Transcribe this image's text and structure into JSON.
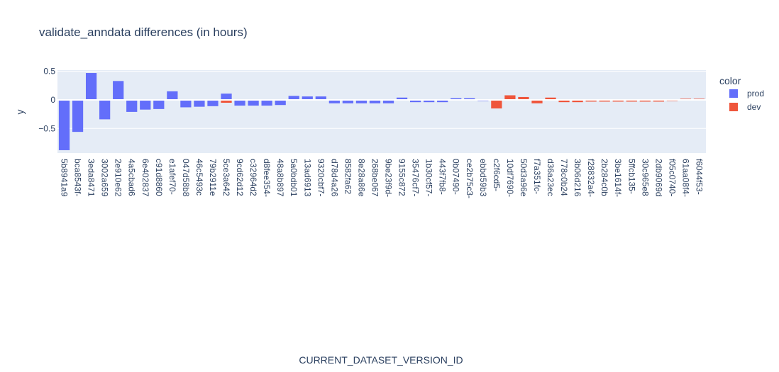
{
  "chart_data": {
    "type": "bar",
    "title": "validate_anndata differences (in hours)",
    "xlabel": "CURRENT_DATASET_VERSION_ID",
    "ylabel": "y",
    "ylim": [
      -0.93,
      0.52
    ],
    "yticks": [
      0.5,
      0,
      -0.5
    ],
    "ytick_labels": [
      "0.5",
      "0",
      "−0.5"
    ],
    "grid": true,
    "legend": {
      "title": "color",
      "placement": "right"
    },
    "categories": [
      "5b8941a9",
      "bca8543f-",
      "3eda8471",
      "3002a659",
      "2e910e62",
      "4a5cbad6",
      "6e402837",
      "c91d8860",
      "e1afef70-",
      "047d58b8",
      "46c5493c",
      "79b2911e",
      "5ce3a642",
      "9cd62d12",
      "c32964d2",
      "d8fee354-",
      "48a8b897",
      "5a0bdb01",
      "13ad6913",
      "9320cbf7-",
      "d78d4a26",
      "8582fa62",
      "8e28a86e",
      "268be067",
      "9be23f9d-",
      "9155c872",
      "35476cf7-",
      "1b30cf57-",
      "443f7fb8-",
      "0b07490-",
      "ce2b75c3-",
      "ebbd59b3",
      "c2f6cd5-",
      "10df7690-",
      "50d3a96e",
      "f7a351fc-",
      "d36a23ec",
      "778c0b24",
      "3b06d216",
      "f28832a4-",
      "2b284c0b",
      "3be1614f-",
      "5ffcb135-",
      "30c965e8",
      "2db9069d",
      "f05c0740-",
      "61aa08f4-",
      "f6044f53-"
    ],
    "series": [
      {
        "name": "prod",
        "color": "#636efa",
        "values": [
          -0.88,
          -0.56,
          0.47,
          -0.34,
          0.33,
          -0.21,
          -0.17,
          -0.16,
          0.15,
          -0.13,
          -0.12,
          -0.11,
          0.11,
          -0.1,
          -0.1,
          -0.1,
          -0.09,
          0.07,
          0.06,
          0.06,
          -0.06,
          -0.06,
          -0.06,
          -0.06,
          -0.06,
          0.04,
          -0.04,
          -0.04,
          -0.04,
          0.03,
          0.03,
          -0.02,
          null,
          null,
          null,
          null,
          null,
          null,
          null,
          null,
          null,
          null,
          null,
          null,
          null,
          null,
          null,
          null
        ]
      },
      {
        "name": "dev",
        "color": "#ef553b",
        "values": [
          null,
          null,
          null,
          null,
          null,
          null,
          null,
          null,
          null,
          null,
          null,
          null,
          -0.05,
          null,
          null,
          null,
          null,
          null,
          null,
          null,
          null,
          null,
          null,
          null,
          null,
          null,
          null,
          null,
          null,
          null,
          null,
          null,
          -0.15,
          0.08,
          0.05,
          -0.06,
          0.04,
          -0.04,
          -0.04,
          -0.03,
          -0.03,
          -0.03,
          -0.03,
          -0.03,
          -0.03,
          -0.02,
          0.02,
          0.02
        ]
      }
    ]
  }
}
